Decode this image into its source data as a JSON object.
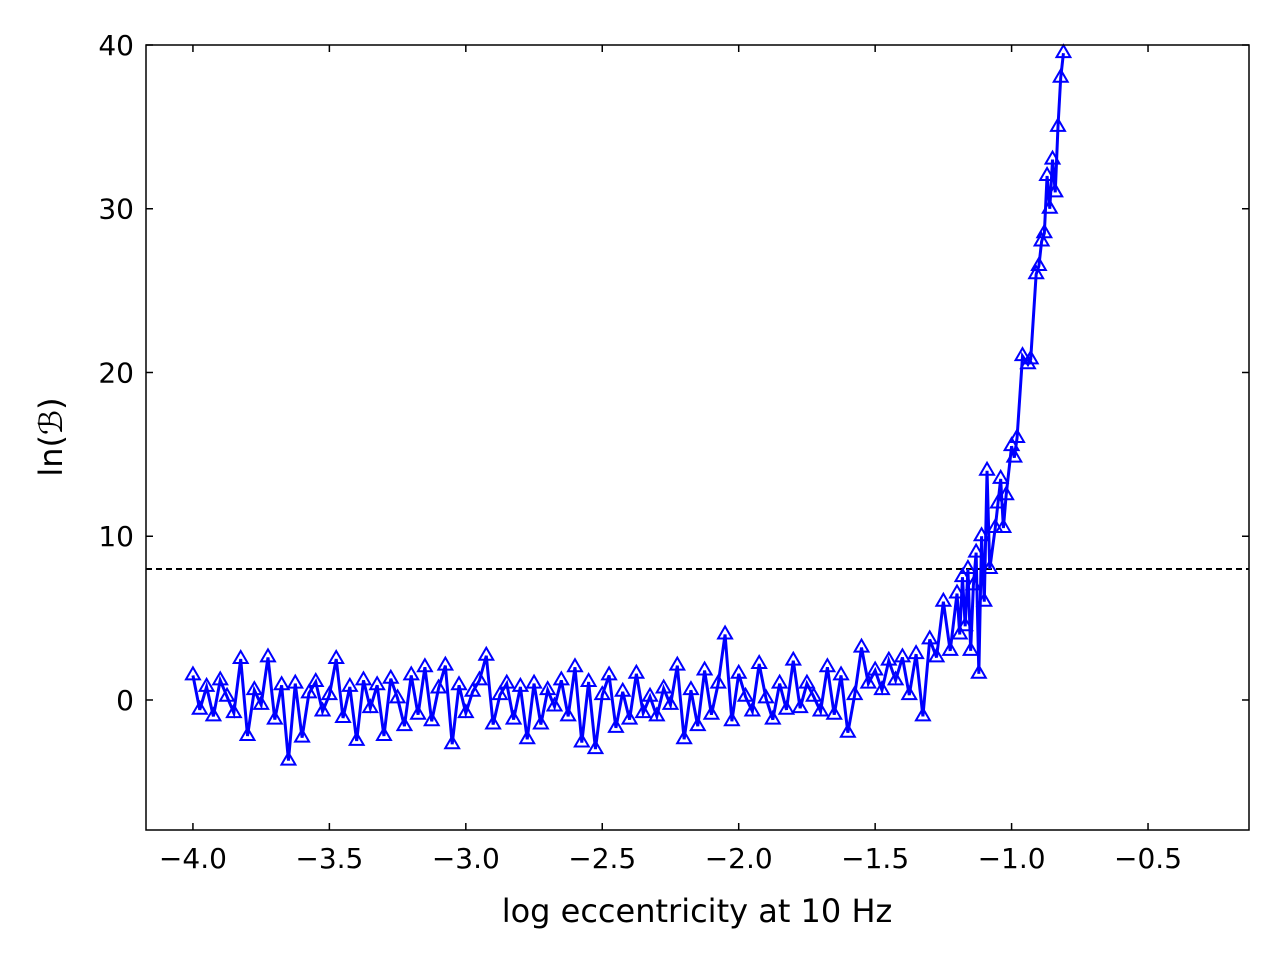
{
  "chart_data": {
    "type": "line",
    "xlabel": "log eccentricity at 10 Hz",
    "ylabel": "ln(ℬ)",
    "xlim": [
      -4.172,
      -0.13
    ],
    "ylim": [
      -7.94,
      40
    ],
    "xticks": [
      {
        "value": -4.0,
        "label": "−4.0"
      },
      {
        "value": -3.5,
        "label": "−3.5"
      },
      {
        "value": -3.0,
        "label": "−3.0"
      },
      {
        "value": -2.5,
        "label": "−2.5"
      },
      {
        "value": -2.0,
        "label": "−2.0"
      },
      {
        "value": -1.5,
        "label": "−1.5"
      },
      {
        "value": -1.0,
        "label": "−1.0"
      },
      {
        "value": -0.5,
        "label": "−0.5"
      }
    ],
    "yticks": [
      0,
      10,
      20,
      30,
      40
    ],
    "hline": 8,
    "grid": false,
    "marker": "triangle",
    "series": [
      {
        "color": "#0000ff",
        "x": [
          -4.0,
          -3.975,
          -3.95,
          -3.925,
          -3.9,
          -3.875,
          -3.85,
          -3.825,
          -3.8,
          -3.775,
          -3.75,
          -3.725,
          -3.7,
          -3.675,
          -3.65,
          -3.625,
          -3.6,
          -3.575,
          -3.55,
          -3.525,
          -3.5,
          -3.475,
          -3.45,
          -3.425,
          -3.4,
          -3.375,
          -3.35,
          -3.325,
          -3.3,
          -3.275,
          -3.25,
          -3.225,
          -3.2,
          -3.175,
          -3.15,
          -3.125,
          -3.1,
          -3.075,
          -3.05,
          -3.025,
          -3.0,
          -2.975,
          -2.95,
          -2.925,
          -2.9,
          -2.875,
          -2.85,
          -2.825,
          -2.8,
          -2.775,
          -2.75,
          -2.725,
          -2.7,
          -2.675,
          -2.65,
          -2.625,
          -2.6,
          -2.575,
          -2.55,
          -2.525,
          -2.5,
          -2.475,
          -2.45,
          -2.425,
          -2.4,
          -2.375,
          -2.35,
          -2.325,
          -2.3,
          -2.275,
          -2.25,
          -2.225,
          -2.2,
          -2.175,
          -2.15,
          -2.125,
          -2.1,
          -2.075,
          -2.05,
          -2.025,
          -2.0,
          -1.975,
          -1.95,
          -1.925,
          -1.9,
          -1.875,
          -1.85,
          -1.825,
          -1.8,
          -1.775,
          -1.75,
          -1.725,
          -1.7,
          -1.675,
          -1.65,
          -1.625,
          -1.6,
          -1.575,
          -1.55,
          -1.525,
          -1.5,
          -1.475,
          -1.45,
          -1.425,
          -1.4,
          -1.375,
          -1.35,
          -1.325,
          -1.3,
          -1.275,
          -1.25,
          -1.225,
          -1.2,
          -1.19,
          -1.18,
          -1.17,
          -1.16,
          -1.15,
          -1.14,
          -1.13,
          -1.12,
          -1.11,
          -1.1,
          -1.09,
          -1.08,
          -1.06,
          -1.05,
          -1.04,
          -1.03,
          -1.02,
          -1.0,
          -0.99,
          -0.98,
          -0.96,
          -0.94,
          -0.93,
          -0.91,
          -0.9,
          -0.89,
          -0.88,
          -0.87,
          -0.86,
          -0.85,
          -0.84,
          -0.83,
          -0.82,
          -0.81
        ],
        "values": [
          1.5,
          -0.6,
          0.8,
          -1.0,
          1.2,
          0.2,
          -0.8,
          2.5,
          -2.2,
          0.6,
          -0.3,
          2.6,
          -1.2,
          0.9,
          -3.7,
          1.0,
          -2.3,
          0.4,
          1.1,
          -0.7,
          0.3,
          2.5,
          -1.1,
          0.8,
          -2.5,
          1.2,
          -0.5,
          0.9,
          -2.2,
          1.3,
          0.1,
          -1.6,
          1.5,
          -0.9,
          2.0,
          -1.3,
          0.7,
          2.1,
          -2.7,
          0.9,
          -0.8,
          0.5,
          1.2,
          2.7,
          -1.5,
          0.3,
          1.0,
          -1.2,
          0.8,
          -2.4,
          1.0,
          -1.5,
          0.6,
          -0.4,
          1.2,
          -1.0,
          2.0,
          -2.6,
          1.1,
          -3.0,
          0.3,
          1.5,
          -1.7,
          0.5,
          -1.2,
          1.6,
          -0.8,
          0.2,
          -1.0,
          0.7,
          -0.3,
          2.1,
          -2.4,
          0.6,
          -1.6,
          1.8,
          -0.9,
          1.0,
          4.0,
          -1.3,
          1.6,
          0.2,
          -0.7,
          2.2,
          0.1,
          -1.2,
          1.0,
          -0.6,
          2.4,
          -0.5,
          1.0,
          0.2,
          -0.7,
          2.0,
          -0.9,
          1.5,
          -2.0,
          0.3,
          3.2,
          1.0,
          1.8,
          0.6,
          2.4,
          1.2,
          2.6,
          0.3,
          2.8,
          -1.0,
          3.7,
          2.6,
          6.0,
          3.0,
          6.5,
          4.0,
          7.5,
          4.5,
          8.0,
          3.0,
          7.0,
          9.0,
          1.6,
          10.0,
          6.0,
          14.0,
          8.0,
          10.5,
          12.0,
          13.5,
          10.5,
          12.5,
          15.5,
          14.8,
          16.0,
          21.0,
          20.5,
          20.8,
          26.0,
          26.5,
          28.0,
          28.5,
          32.0,
          30.0,
          33.0,
          31.0,
          35.0,
          38.0,
          39.5
        ]
      }
    ]
  }
}
